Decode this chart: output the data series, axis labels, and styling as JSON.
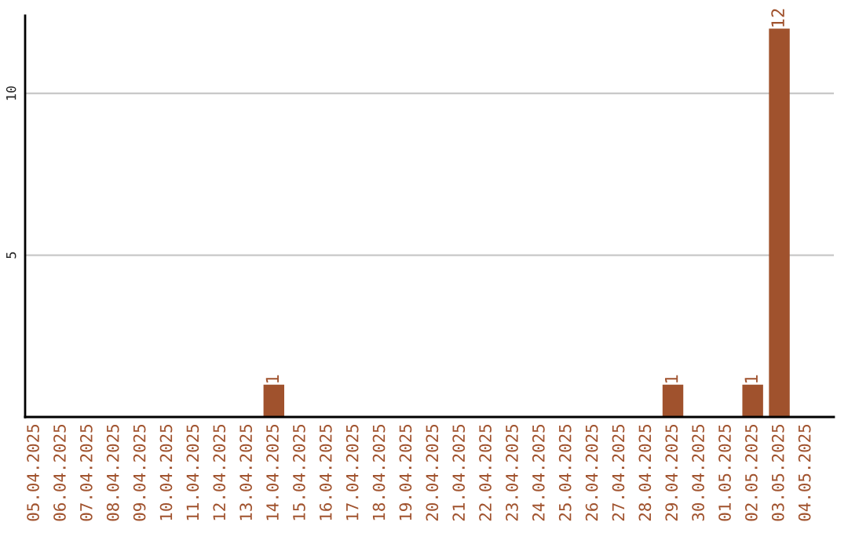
{
  "chart_data": {
    "type": "bar",
    "categories": [
      "05.04.2025",
      "06.04.2025",
      "07.04.2025",
      "08.04.2025",
      "09.04.2025",
      "10.04.2025",
      "11.04.2025",
      "12.04.2025",
      "13.04.2025",
      "14.04.2025",
      "15.04.2025",
      "16.04.2025",
      "17.04.2025",
      "18.04.2025",
      "19.04.2025",
      "20.04.2025",
      "21.04.2025",
      "22.04.2025",
      "23.04.2025",
      "24.04.2025",
      "25.04.2025",
      "26.04.2025",
      "27.04.2025",
      "28.04.2025",
      "29.04.2025",
      "30.04.2025",
      "01.05.2025",
      "02.05.2025",
      "03.05.2025",
      "04.05.2025"
    ],
    "values": [
      0,
      0,
      0,
      0,
      0,
      0,
      0,
      0,
      0,
      1,
      0,
      0,
      0,
      0,
      0,
      0,
      0,
      0,
      0,
      0,
      0,
      0,
      0,
      0,
      1,
      0,
      0,
      1,
      12,
      0
    ],
    "value_labels": [
      null,
      null,
      null,
      null,
      null,
      null,
      null,
      null,
      null,
      "1",
      null,
      null,
      null,
      null,
      null,
      null,
      null,
      null,
      null,
      null,
      null,
      null,
      null,
      null,
      "1",
      null,
      null,
      "1",
      "12",
      null
    ],
    "color": "#a0522d",
    "ylim": [
      0,
      12.4
    ],
    "yticks": [
      5,
      10
    ],
    "grid": "y",
    "legend": false
  }
}
